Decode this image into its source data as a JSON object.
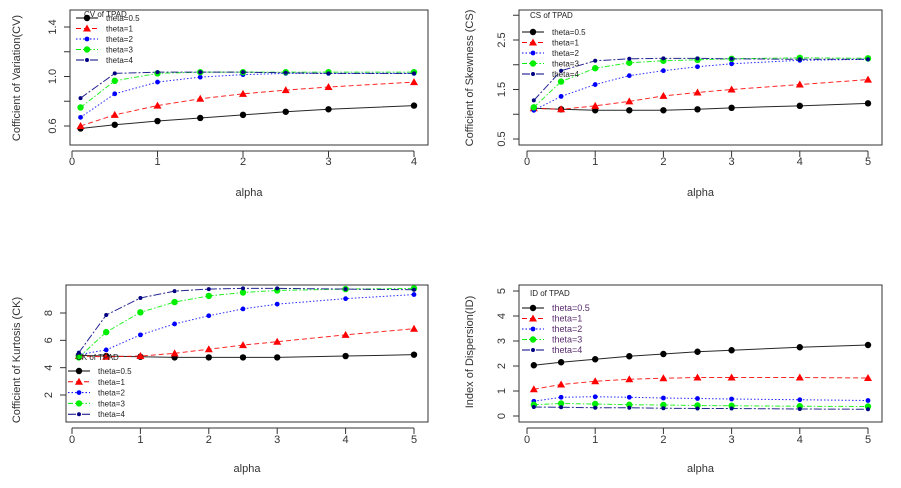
{
  "chart_data": [
    {
      "id": "cv",
      "type": "line",
      "title": "",
      "legend_title": "CV of TPAD",
      "legend_position": "top-left",
      "xlabel": "alpha",
      "ylabel": "Cofficient of Variation(CV)",
      "xlim": [
        0,
        4
      ],
      "ylim": [
        0.6,
        1.4
      ],
      "xticks": [
        0,
        1,
        2,
        3,
        4
      ],
      "yticks": [
        0.6,
        1.0,
        1.4
      ],
      "yticks_minor": [
        0.8,
        1.2
      ],
      "x": [
        0.1,
        0.5,
        1,
        1.5,
        2,
        2.5,
        3,
        4
      ],
      "series": [
        {
          "name": "theta=0.5",
          "color": "#000000",
          "marker": "circle",
          "dash": "solid",
          "values": [
            0.58,
            0.61,
            0.64,
            0.665,
            0.69,
            0.715,
            0.735,
            0.765
          ]
        },
        {
          "name": "theta=1",
          "color": "#ff0000",
          "marker": "triangle",
          "dash": "dashed",
          "values": [
            0.6,
            0.69,
            0.765,
            0.82,
            0.86,
            0.89,
            0.915,
            0.955
          ]
        },
        {
          "name": "theta=2",
          "color": "#0000ff",
          "marker": "diamond",
          "dash": "dotted",
          "values": [
            0.67,
            0.86,
            0.955,
            0.995,
            1.015,
            1.025,
            1.025,
            1.025
          ]
        },
        {
          "name": "theta=3",
          "color": "#00ee00",
          "marker": "circle",
          "dash": "dotdash",
          "values": [
            0.75,
            0.965,
            1.025,
            1.035,
            1.035,
            1.035,
            1.035,
            1.035
          ]
        },
        {
          "name": "theta=4",
          "color": "#000080",
          "marker": "small",
          "dash": "longdash",
          "values": [
            0.825,
            1.025,
            1.035,
            1.035,
            1.035,
            1.03,
            1.025,
            1.025
          ]
        }
      ]
    },
    {
      "id": "cs",
      "type": "line",
      "title": "",
      "legend_title": "CS of TPAD",
      "legend_position": "top-left",
      "xlabel": "alpha",
      "ylabel": "Cofficient of Skewness (CS)",
      "xlim": [
        0,
        5
      ],
      "ylim": [
        0.5,
        2.5
      ],
      "xticks": [
        0,
        1,
        2,
        3,
        4,
        5
      ],
      "yticks": [
        0.5,
        1.5,
        2.5
      ],
      "yticks_minor": [
        1.0,
        2.0,
        3.0
      ],
      "x": [
        0.1,
        0.5,
        1,
        1.5,
        2,
        2.5,
        3,
        4,
        5
      ],
      "series": [
        {
          "name": "theta=0.5",
          "color": "#000000",
          "marker": "circle",
          "dash": "solid",
          "values": [
            1.12,
            1.1,
            1.08,
            1.08,
            1.08,
            1.1,
            1.13,
            1.17,
            1.22
          ]
        },
        {
          "name": "theta=1",
          "color": "#ff0000",
          "marker": "triangle",
          "dash": "dashed",
          "values": [
            1.12,
            1.1,
            1.17,
            1.26,
            1.37,
            1.44,
            1.5,
            1.6,
            1.7
          ]
        },
        {
          "name": "theta=2",
          "color": "#0000ff",
          "marker": "diamond",
          "dash": "dotted",
          "values": [
            1.08,
            1.36,
            1.6,
            1.78,
            1.88,
            1.96,
            2.02,
            2.09,
            2.11
          ]
        },
        {
          "name": "theta=3",
          "color": "#00ee00",
          "marker": "circle",
          "dash": "dotdash",
          "values": [
            1.14,
            1.66,
            1.93,
            2.04,
            2.08,
            2.1,
            2.12,
            2.14,
            2.13
          ]
        },
        {
          "name": "theta=4",
          "color": "#000080",
          "marker": "small",
          "dash": "longdash",
          "values": [
            1.28,
            1.88,
            2.08,
            2.12,
            2.13,
            2.13,
            2.12,
            2.11,
            2.11
          ]
        }
      ]
    },
    {
      "id": "ck",
      "type": "line",
      "title": "",
      "legend_title": "CK of TPAD",
      "legend_position": "bottom-left",
      "xlabel": "alpha",
      "ylabel": "Cofficient of Kurtosis (CK)",
      "xlim": [
        0,
        5
      ],
      "ylim": [
        0.5,
        9.8
      ],
      "xticks": [
        0,
        1,
        2,
        3,
        4,
        5
      ],
      "yticks": [
        2,
        4,
        6,
        8
      ],
      "x": [
        0.1,
        0.5,
        1,
        1.5,
        2,
        2.5,
        3,
        4,
        5
      ],
      "series": [
        {
          "name": "theta=0.5",
          "color": "#000000",
          "marker": "circle",
          "dash": "solid",
          "values": [
            4.9,
            4.85,
            4.8,
            4.75,
            4.75,
            4.75,
            4.75,
            4.85,
            4.95
          ]
        },
        {
          "name": "theta=1",
          "color": "#ff0000",
          "marker": "triangle",
          "dash": "dashed",
          "values": [
            4.85,
            4.8,
            4.85,
            5.05,
            5.35,
            5.65,
            5.9,
            6.4,
            6.85
          ]
        },
        {
          "name": "theta=2",
          "color": "#0000ff",
          "marker": "diamond",
          "dash": "dotted",
          "values": [
            4.95,
            5.3,
            6.4,
            7.2,
            7.8,
            8.3,
            8.65,
            9.05,
            9.35
          ]
        },
        {
          "name": "theta=3",
          "color": "#00ee00",
          "marker": "circle",
          "dash": "dotdash",
          "values": [
            4.75,
            6.6,
            8.05,
            8.8,
            9.25,
            9.5,
            9.65,
            9.75,
            9.8
          ]
        },
        {
          "name": "theta=4",
          "color": "#000080",
          "marker": "small",
          "dash": "longdash",
          "values": [
            5.1,
            7.85,
            9.1,
            9.6,
            9.75,
            9.8,
            9.8,
            9.75,
            9.7
          ]
        }
      ]
    },
    {
      "id": "id",
      "type": "line",
      "title": "",
      "legend_title": "ID of TPAD",
      "legend_position": "top-left",
      "xlabel": "alpha",
      "ylabel": "Index of Dispersion(ID)",
      "xlim": [
        0,
        5
      ],
      "ylim": [
        0,
        5
      ],
      "xticks": [
        0,
        1,
        2,
        3,
        4,
        5
      ],
      "yticks": [
        0,
        1,
        2,
        3,
        4,
        5
      ],
      "x": [
        0.1,
        0.5,
        1,
        1.5,
        2,
        2.5,
        3,
        4,
        5
      ],
      "series": [
        {
          "name": "theta=0.5",
          "color": "#000000",
          "marker": "circle",
          "dash": "solid",
          "values": [
            2.03,
            2.15,
            2.27,
            2.39,
            2.48,
            2.57,
            2.63,
            2.75,
            2.84
          ]
        },
        {
          "name": "theta=1",
          "color": "#ff0000",
          "marker": "triangle",
          "dash": "dashed",
          "values": [
            1.07,
            1.26,
            1.39,
            1.47,
            1.51,
            1.54,
            1.54,
            1.54,
            1.52
          ]
        },
        {
          "name": "theta=2",
          "color": "#0000ff",
          "marker": "diamond",
          "dash": "dotted",
          "values": [
            0.59,
            0.75,
            0.77,
            0.75,
            0.72,
            0.7,
            0.68,
            0.65,
            0.62
          ]
        },
        {
          "name": "theta=3",
          "color": "#00ee00",
          "marker": "circle",
          "dash": "dotdash",
          "values": [
            0.45,
            0.5,
            0.48,
            0.45,
            0.44,
            0.42,
            0.41,
            0.39,
            0.38
          ]
        },
        {
          "name": "theta=4",
          "color": "#000080",
          "marker": "small",
          "dash": "longdash",
          "values": [
            0.36,
            0.35,
            0.33,
            0.33,
            0.31,
            0.3,
            0.3,
            0.28,
            0.27
          ]
        }
      ]
    }
  ]
}
